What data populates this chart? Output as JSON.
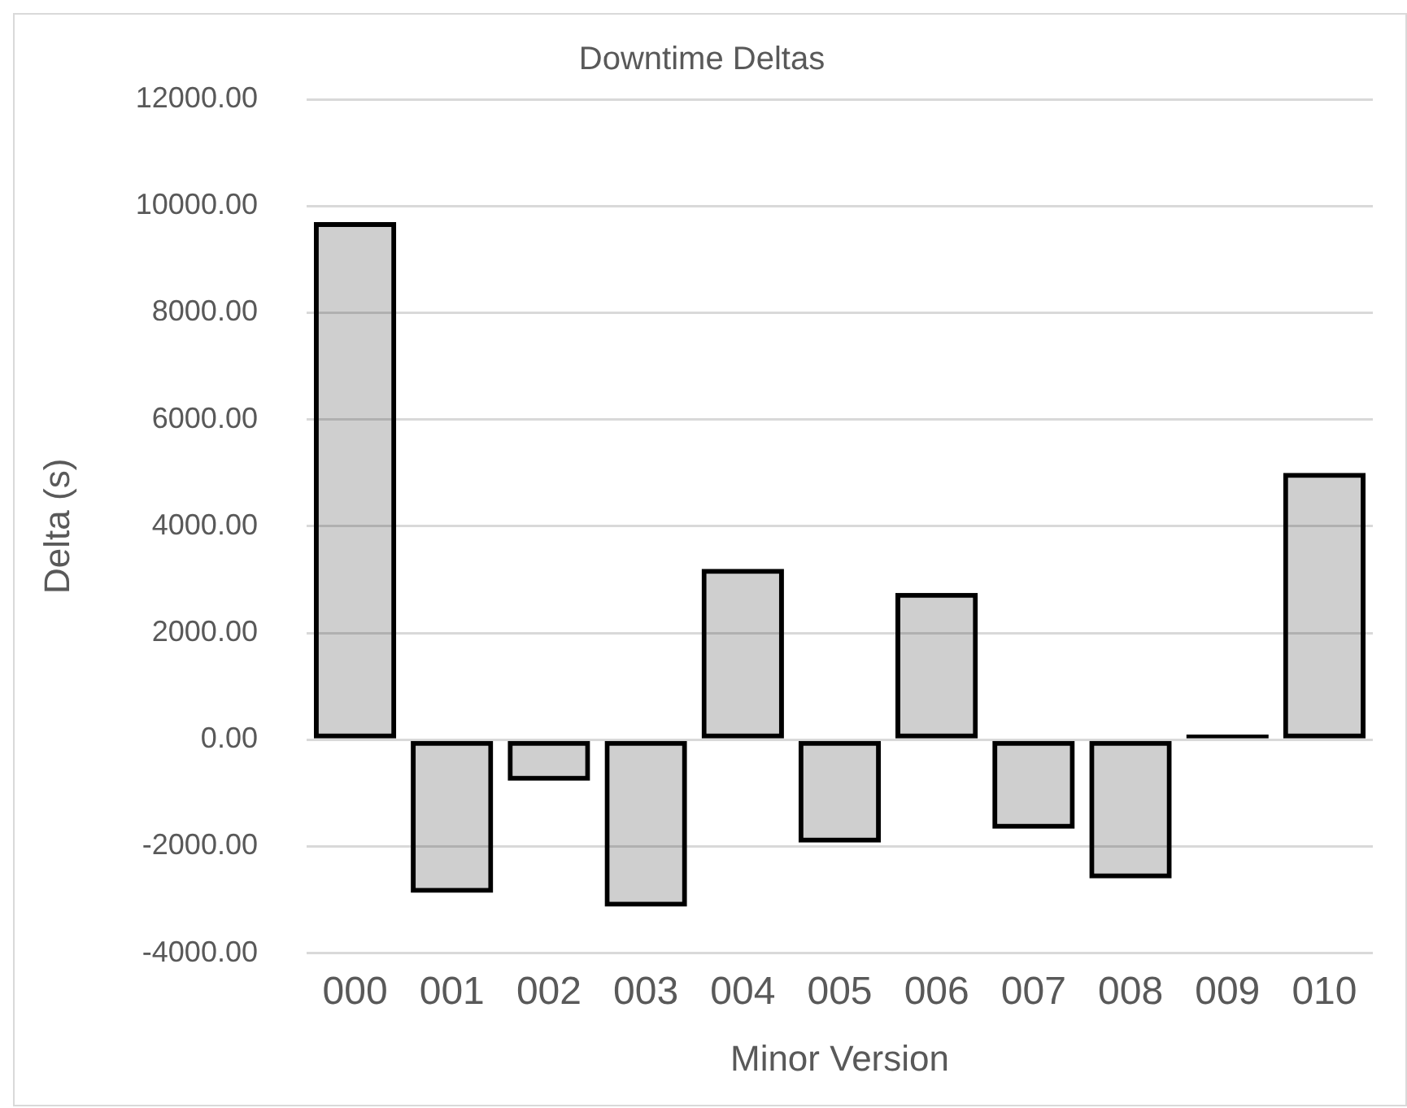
{
  "chart_data": {
    "type": "bar",
    "title": "Downtime Deltas",
    "xlabel": "Minor Version",
    "ylabel": "Delta (s)",
    "categories": [
      "000",
      "001",
      "002",
      "003",
      "004",
      "005",
      "006",
      "007",
      "008",
      "009",
      "010"
    ],
    "values": [
      9700,
      -2870,
      -770,
      -3130,
      3200,
      -1930,
      2750,
      -1670,
      -2600,
      100,
      5000
    ],
    "color": "#000000",
    "ylim": [
      -4000,
      12000
    ],
    "yticks": [
      {
        "value": -4000,
        "label": "-4000.00"
      },
      {
        "value": -2000,
        "label": "-2000.00"
      },
      {
        "value": 0,
        "label": "0.00"
      },
      {
        "value": 2000,
        "label": "2000.00"
      },
      {
        "value": 4000,
        "label": "4000.00"
      },
      {
        "value": 6000,
        "label": "6000.00"
      },
      {
        "value": 8000,
        "label": "8000.00"
      },
      {
        "value": 10000,
        "label": "10000.00"
      },
      {
        "value": 12000,
        "label": "12000.00"
      }
    ],
    "grid": "y",
    "legend": false
  }
}
